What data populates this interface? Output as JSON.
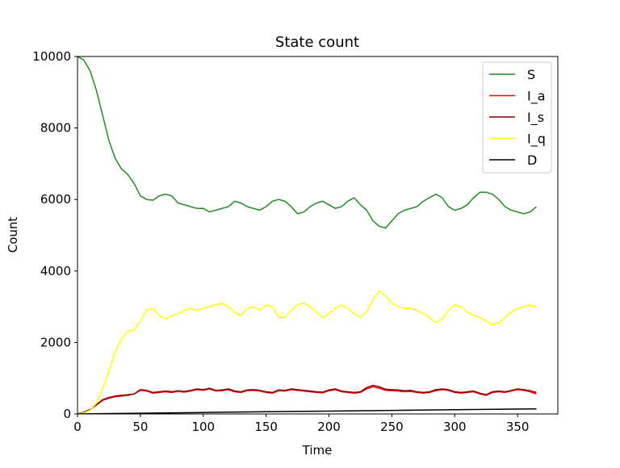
{
  "chart_data": {
    "type": "line",
    "title": "State count",
    "xlabel": "Time",
    "ylabel": "Count",
    "xlim": [
      0,
      382
    ],
    "ylim": [
      0,
      10000
    ],
    "xticks": [
      0,
      50,
      100,
      150,
      200,
      250,
      300,
      350
    ],
    "yticks": [
      0,
      2000,
      4000,
      6000,
      8000,
      10000
    ],
    "grid": false,
    "legend_position": "top-right",
    "series": [
      {
        "name": "S",
        "color": "#228b22",
        "x": [
          0,
          5,
          10,
          15,
          20,
          25,
          30,
          35,
          40,
          45,
          50,
          55,
          60,
          65,
          70,
          75,
          80,
          85,
          90,
          95,
          100,
          105,
          110,
          115,
          120,
          125,
          130,
          135,
          140,
          145,
          150,
          155,
          160,
          165,
          170,
          175,
          180,
          185,
          190,
          195,
          200,
          205,
          210,
          215,
          220,
          225,
          230,
          235,
          240,
          245,
          250,
          255,
          260,
          265,
          270,
          275,
          280,
          285,
          290,
          295,
          300,
          305,
          310,
          315,
          320,
          325,
          330,
          335,
          340,
          345,
          350,
          355,
          360,
          365
        ],
        "values": [
          10000,
          9900,
          9600,
          9050,
          8350,
          7650,
          7150,
          6850,
          6700,
          6450,
          6100,
          6000,
          5980,
          6100,
          6150,
          6100,
          5900,
          5850,
          5800,
          5750,
          5750,
          5650,
          5700,
          5750,
          5800,
          5950,
          5900,
          5800,
          5750,
          5700,
          5800,
          5950,
          6000,
          5950,
          5800,
          5600,
          5650,
          5800,
          5900,
          5950,
          5850,
          5750,
          5800,
          5950,
          6050,
          5850,
          5700,
          5400,
          5250,
          5200,
          5400,
          5600,
          5700,
          5750,
          5800,
          5950,
          6050,
          6150,
          6050,
          5800,
          5700,
          5750,
          5850,
          6050,
          6200,
          6200,
          6150,
          6000,
          5800,
          5700,
          5650,
          5600,
          5650,
          5800
        ]
      },
      {
        "name": "I_a",
        "color": "#ff0000",
        "x": [
          0,
          5,
          10,
          15,
          20,
          25,
          30,
          35,
          40,
          45,
          50,
          55,
          60,
          65,
          70,
          75,
          80,
          85,
          90,
          95,
          100,
          105,
          110,
          115,
          120,
          125,
          130,
          135,
          140,
          145,
          150,
          155,
          160,
          165,
          170,
          175,
          180,
          185,
          190,
          195,
          200,
          205,
          210,
          215,
          220,
          225,
          230,
          235,
          240,
          245,
          250,
          255,
          260,
          265,
          270,
          275,
          280,
          285,
          290,
          295,
          300,
          305,
          310,
          315,
          320,
          325,
          330,
          335,
          340,
          345,
          350,
          355,
          360,
          365
        ],
        "values": [
          0,
          40,
          110,
          250,
          380,
          440,
          480,
          500,
          520,
          560,
          660,
          640,
          580,
          600,
          620,
          600,
          630,
          610,
          640,
          680,
          660,
          700,
          640,
          650,
          680,
          620,
          600,
          650,
          660,
          640,
          600,
          580,
          650,
          640,
          680,
          660,
          640,
          620,
          600,
          590,
          650,
          680,
          620,
          600,
          580,
          600,
          700,
          760,
          720,
          660,
          650,
          640,
          620,
          630,
          600,
          580,
          600,
          650,
          680,
          660,
          600,
          580,
          600,
          620,
          560,
          520,
          600,
          620,
          600,
          640,
          680,
          660,
          620,
          560
        ]
      },
      {
        "name": "I_s",
        "color": "#8b0000",
        "x": [
          0,
          5,
          10,
          15,
          20,
          25,
          30,
          35,
          40,
          45,
          50,
          55,
          60,
          65,
          70,
          75,
          80,
          85,
          90,
          95,
          100,
          105,
          110,
          115,
          120,
          125,
          130,
          135,
          140,
          145,
          150,
          155,
          160,
          165,
          170,
          175,
          180,
          185,
          190,
          195,
          200,
          205,
          210,
          215,
          220,
          225,
          230,
          235,
          240,
          245,
          250,
          255,
          260,
          265,
          270,
          275,
          280,
          285,
          290,
          295,
          300,
          305,
          310,
          315,
          320,
          325,
          330,
          335,
          340,
          345,
          350,
          355,
          360,
          365
        ],
        "values": [
          0,
          50,
          120,
          260,
          400,
          460,
          500,
          520,
          540,
          560,
          680,
          660,
          600,
          620,
          640,
          620,
          650,
          630,
          660,
          700,
          680,
          720,
          660,
          670,
          700,
          640,
          620,
          670,
          680,
          660,
          620,
          600,
          670,
          660,
          700,
          680,
          660,
          640,
          620,
          610,
          670,
          700,
          640,
          620,
          600,
          620,
          740,
          800,
          760,
          690,
          680,
          670,
          650,
          660,
          620,
          600,
          620,
          680,
          700,
          680,
          620,
          600,
          620,
          640,
          580,
          540,
          620,
          640,
          620,
          660,
          700,
          680,
          650,
          600
        ]
      },
      {
        "name": "I_q",
        "color": "#ffff00",
        "x": [
          0,
          5,
          10,
          15,
          20,
          25,
          30,
          35,
          40,
          45,
          50,
          55,
          60,
          65,
          70,
          75,
          80,
          85,
          90,
          95,
          100,
          105,
          110,
          115,
          120,
          125,
          130,
          135,
          140,
          145,
          150,
          155,
          160,
          165,
          170,
          175,
          180,
          185,
          190,
          195,
          200,
          205,
          210,
          215,
          220,
          225,
          230,
          235,
          240,
          245,
          250,
          255,
          260,
          265,
          270,
          275,
          280,
          285,
          290,
          295,
          300,
          305,
          310,
          315,
          320,
          325,
          330,
          335,
          340,
          345,
          350,
          355,
          360,
          365
        ],
        "values": [
          0,
          30,
          100,
          300,
          700,
          1200,
          1750,
          2100,
          2300,
          2350,
          2600,
          2900,
          2950,
          2750,
          2650,
          2750,
          2800,
          2900,
          2950,
          2900,
          2950,
          3000,
          3050,
          3100,
          3000,
          2850,
          2750,
          2950,
          3000,
          2900,
          3050,
          3000,
          2700,
          2700,
          2900,
          3050,
          3100,
          3000,
          2850,
          2700,
          2800,
          2950,
          3050,
          2950,
          2800,
          2700,
          2850,
          3200,
          3450,
          3300,
          3100,
          3000,
          2950,
          2950,
          2900,
          2800,
          2700,
          2550,
          2650,
          2900,
          3050,
          3000,
          2850,
          2750,
          2700,
          2600,
          2500,
          2550,
          2700,
          2850,
          2950,
          3000,
          3050,
          3000
        ]
      },
      {
        "name": "D",
        "color": "#000000",
        "x": [
          0,
          50,
          100,
          150,
          200,
          250,
          300,
          365
        ],
        "values": [
          0,
          20,
          40,
          60,
          80,
          100,
          120,
          140
        ]
      }
    ]
  }
}
